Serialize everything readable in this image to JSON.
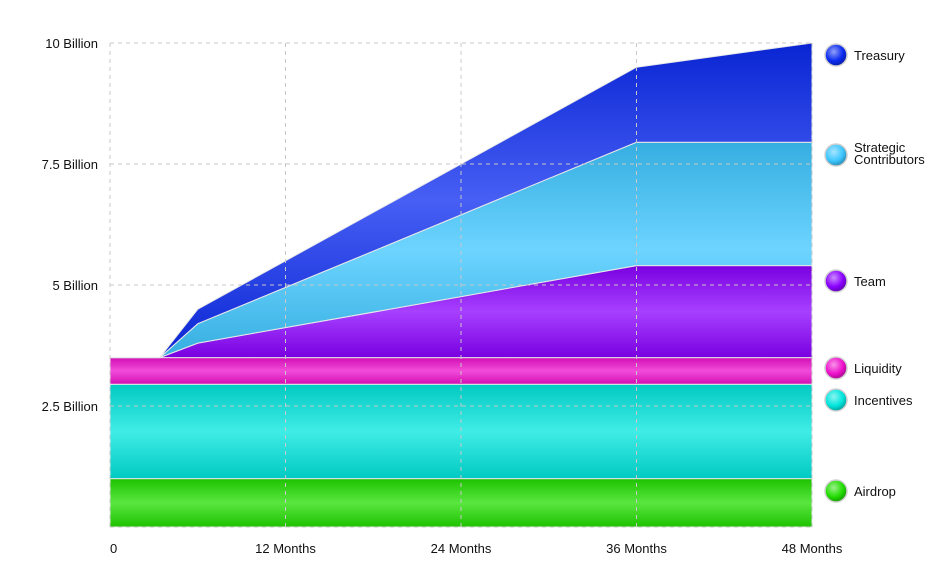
{
  "chart_data": {
    "type": "area",
    "stacked": true,
    "title": "",
    "xlabel": "",
    "ylabel": "",
    "x_tick_labels": [
      "0",
      "12 Months",
      "24 Months",
      "36 Months",
      "48 Months"
    ],
    "y_tick_labels": [
      "2.5 Billion",
      "5 Billion",
      "7.5 Billion",
      "10 Billion"
    ],
    "xlim": [
      0,
      48
    ],
    "ylim": [
      0,
      10
    ],
    "y_unit": "Billion",
    "grid": true,
    "legend_position": "right",
    "series": [
      {
        "name": "Airdrop",
        "color": "#22dd00",
        "points": [
          [
            0,
            1.0
          ],
          [
            48,
            1.0
          ]
        ]
      },
      {
        "name": "Incentives",
        "color": "#00e6dd",
        "points": [
          [
            0,
            2.95
          ],
          [
            48,
            2.95
          ]
        ]
      },
      {
        "name": "Liquidity",
        "color": "#ee10cc",
        "points": [
          [
            0,
            3.5
          ],
          [
            48,
            3.5
          ]
        ]
      },
      {
        "name": "Team",
        "color": "#8a00ff",
        "points": [
          [
            0,
            3.5
          ],
          [
            3.4,
            3.5
          ],
          [
            6,
            3.8
          ],
          [
            36,
            5.4
          ],
          [
            48,
            5.4
          ]
        ]
      },
      {
        "name": "Strategic Contributors",
        "color": "#3cc6ff",
        "points": [
          [
            0,
            3.5
          ],
          [
            3.4,
            3.5
          ],
          [
            6,
            4.2
          ],
          [
            36,
            7.95
          ],
          [
            48,
            7.95
          ]
        ]
      },
      {
        "name": "Treasury",
        "color": "#0a2af0",
        "points": [
          [
            0,
            3.5
          ],
          [
            3.4,
            3.5
          ],
          [
            6,
            4.5
          ],
          [
            36,
            9.5
          ],
          [
            48,
            10.0
          ]
        ]
      }
    ]
  }
}
